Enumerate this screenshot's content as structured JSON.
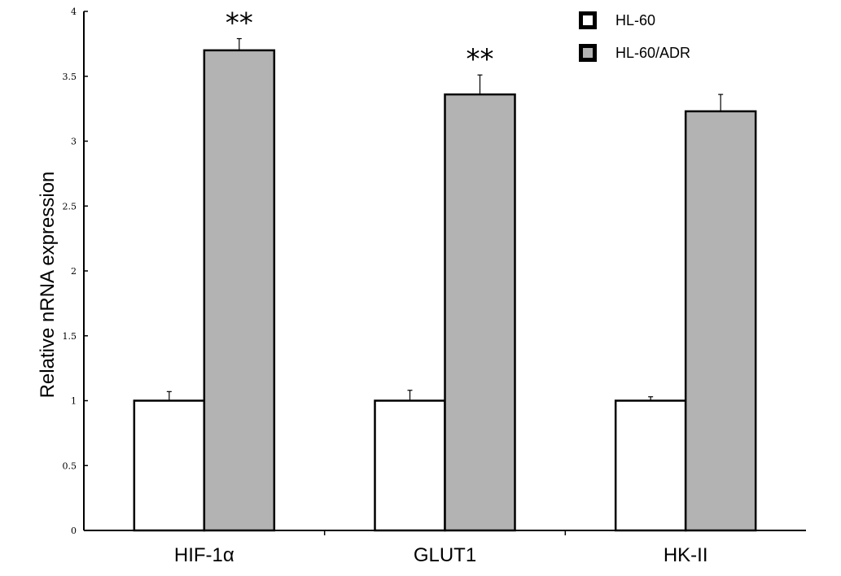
{
  "chart_data": {
    "type": "bar",
    "categories": [
      "HIF-1α",
      "GLUT1",
      "HK-II"
    ],
    "series": [
      {
        "name": "HL-60",
        "values": [
          1.0,
          1.0,
          1.0
        ],
        "errors": [
          0.07,
          0.08,
          0.03
        ],
        "color": "#ffffff"
      },
      {
        "name": "HL-60/ADR",
        "values": [
          3.7,
          3.36,
          3.23
        ],
        "errors": [
          0.09,
          0.15,
          0.13
        ],
        "color": "#b3b3b3"
      }
    ],
    "annotations": [
      "**",
      "**",
      ""
    ],
    "title": "",
    "xlabel": "",
    "ylabel": "Relative nRNA expression",
    "ylim": [
      0,
      4
    ],
    "yticks": [
      "0",
      "0.5",
      "1",
      "1.5",
      "2",
      "2.5",
      "3",
      "3.5",
      "4"
    ],
    "grid": false,
    "legend_position": "top-right"
  }
}
